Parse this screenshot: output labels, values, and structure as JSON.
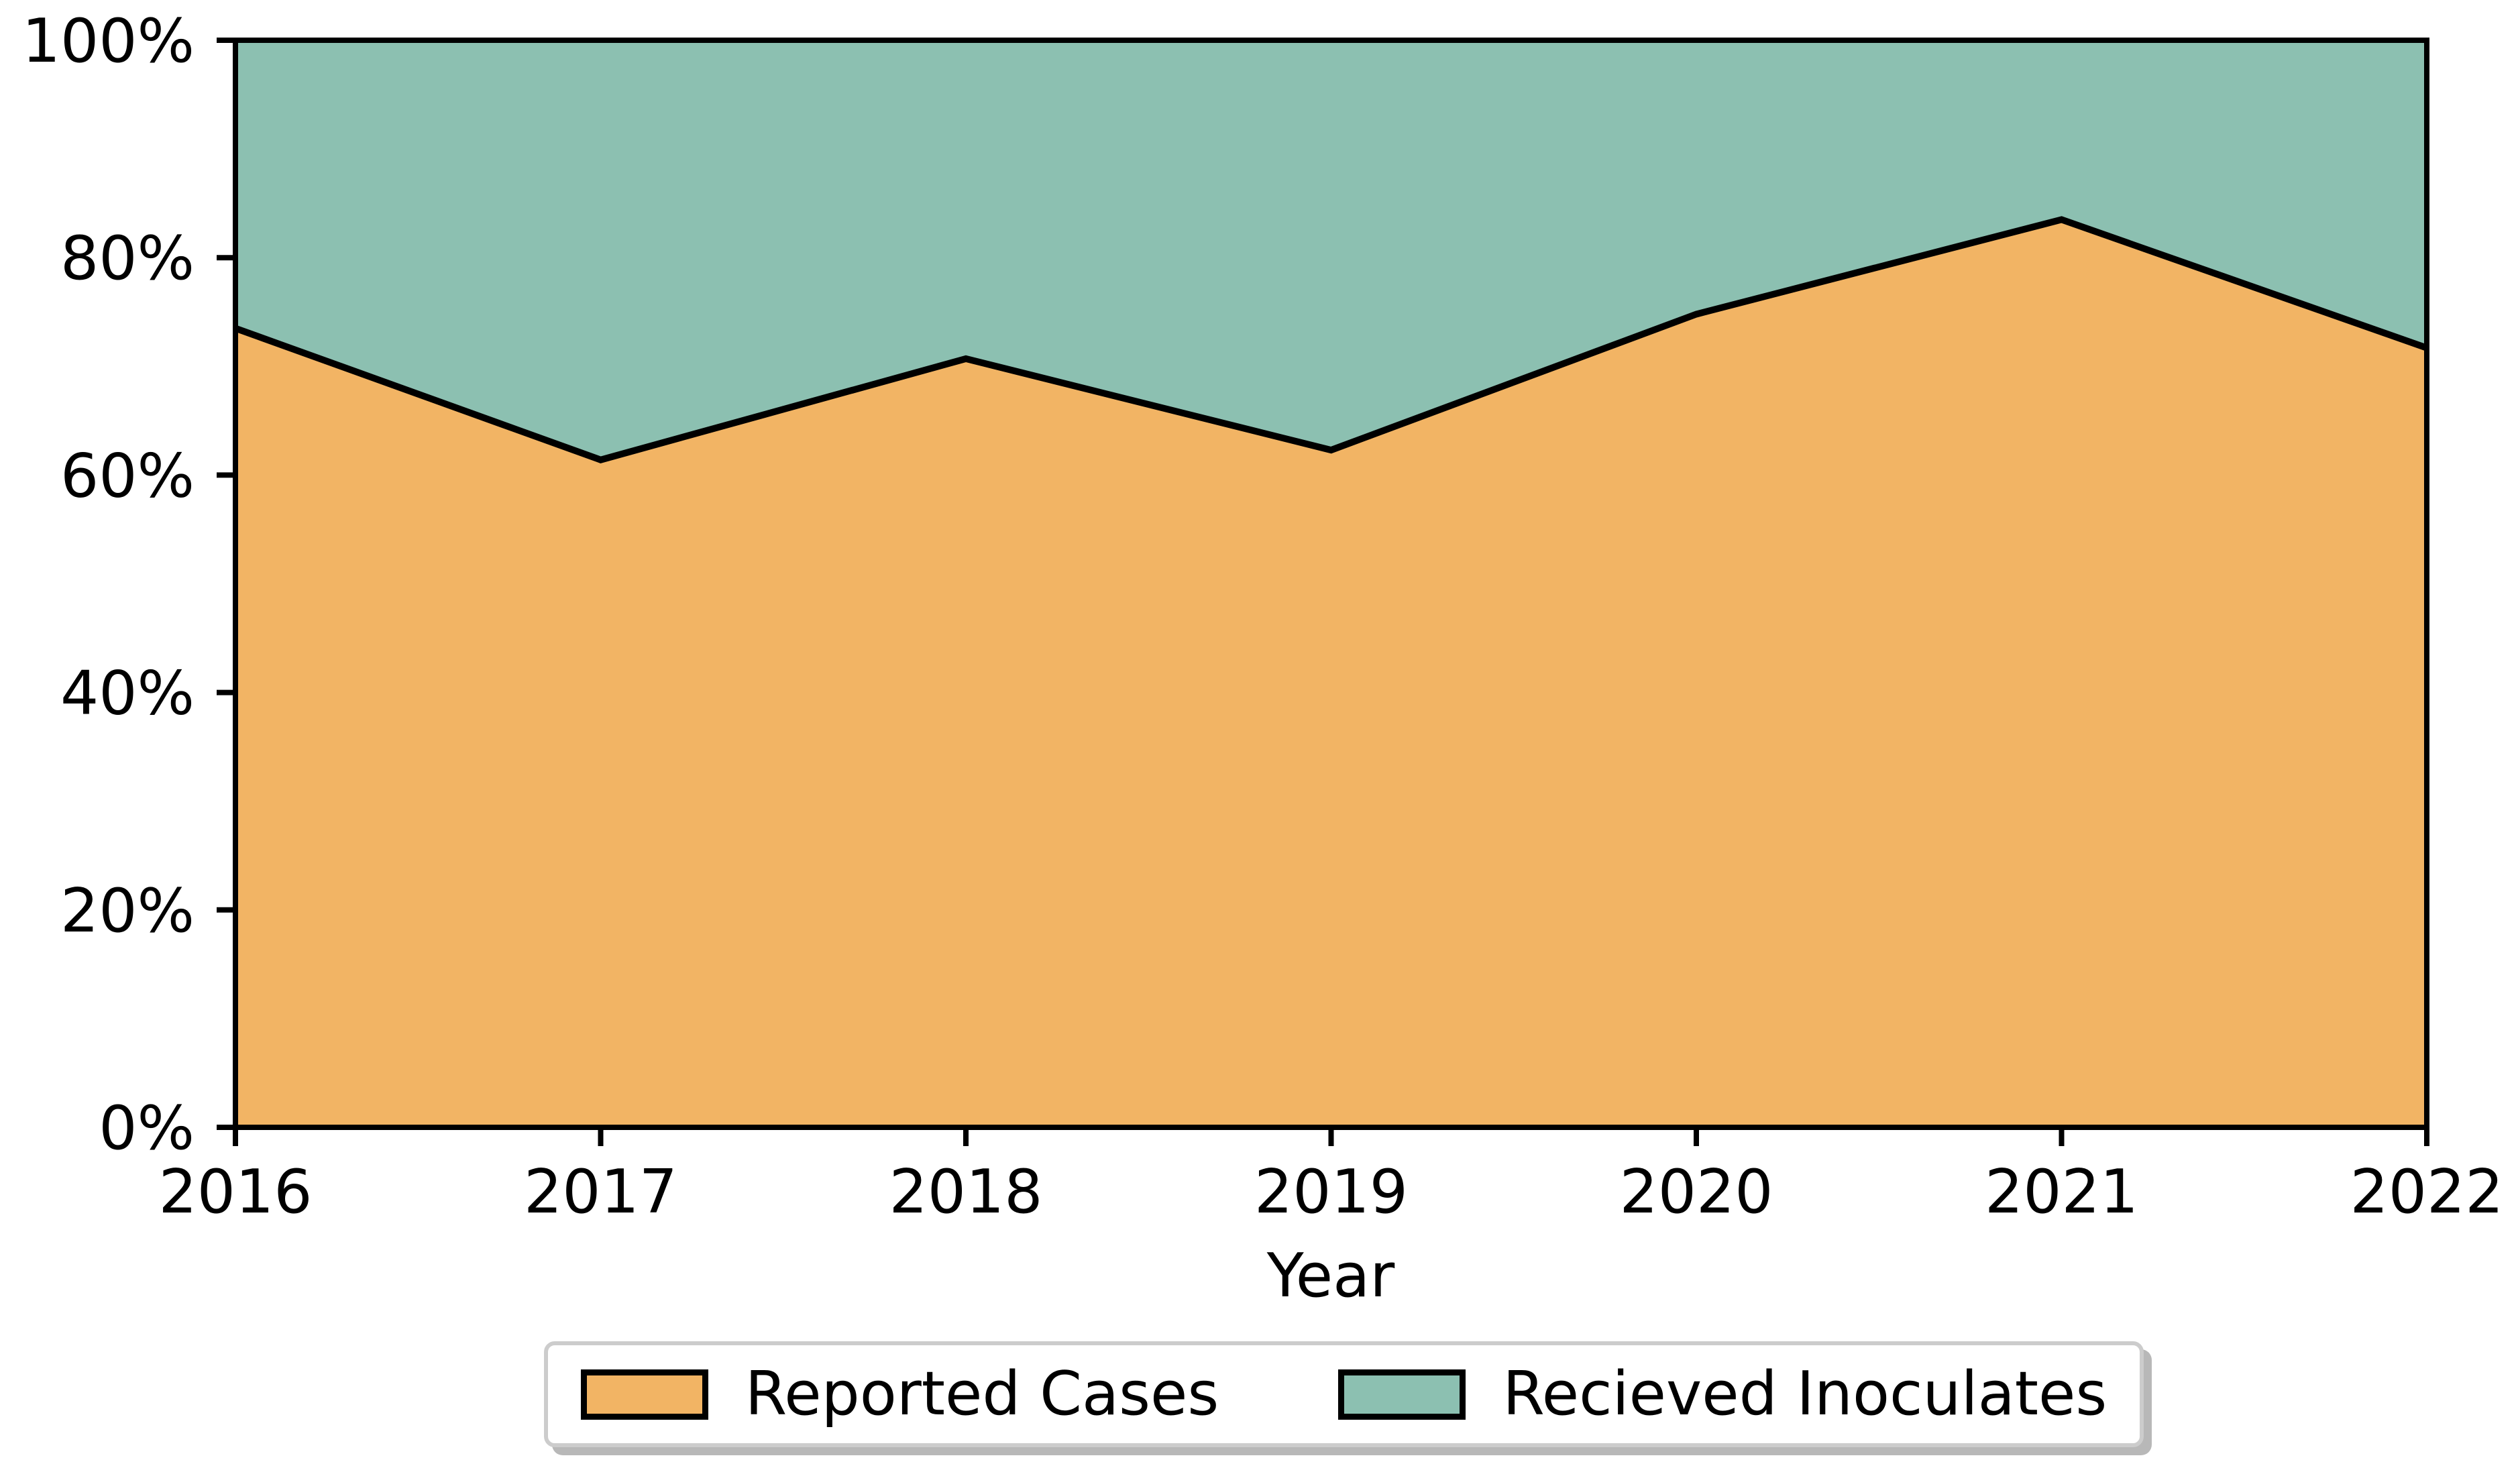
{
  "chart_data": {
    "type": "area",
    "subtype": "100-percent-stacked",
    "title": "",
    "xlabel": "Year",
    "ylabel": "",
    "x": [
      2016,
      2017,
      2018,
      2019,
      2020,
      2021,
      2022
    ],
    "x_tick_labels": [
      "2016",
      "2017",
      "2018",
      "2019",
      "2020",
      "2021",
      "2022"
    ],
    "y_ticks": [
      0,
      20,
      40,
      60,
      80,
      100
    ],
    "y_tick_labels": [
      "0%",
      "20%",
      "40%",
      "60%",
      "80%",
      "100%"
    ],
    "ylim": [
      0,
      100
    ],
    "grid": false,
    "legend_position": "below-chart-center",
    "boundary_line_color": "#000000",
    "frame_color": "#000000",
    "series": [
      {
        "name": "Reported Cases",
        "color": "#f2b464",
        "values": [
          73.5,
          61.4,
          70.7,
          62.3,
          74.8,
          83.5,
          71.7
        ]
      },
      {
        "name": "Recieved Inoculates",
        "color": "#8cc0b1",
        "values": [
          26.5,
          38.6,
          29.3,
          37.7,
          25.2,
          16.5,
          28.3
        ]
      }
    ]
  },
  "legend": {
    "items": [
      {
        "label": "Reported Cases",
        "color": "#f2b464"
      },
      {
        "label": "Recieved Inoculates",
        "color": "#8cc0b1"
      }
    ]
  }
}
